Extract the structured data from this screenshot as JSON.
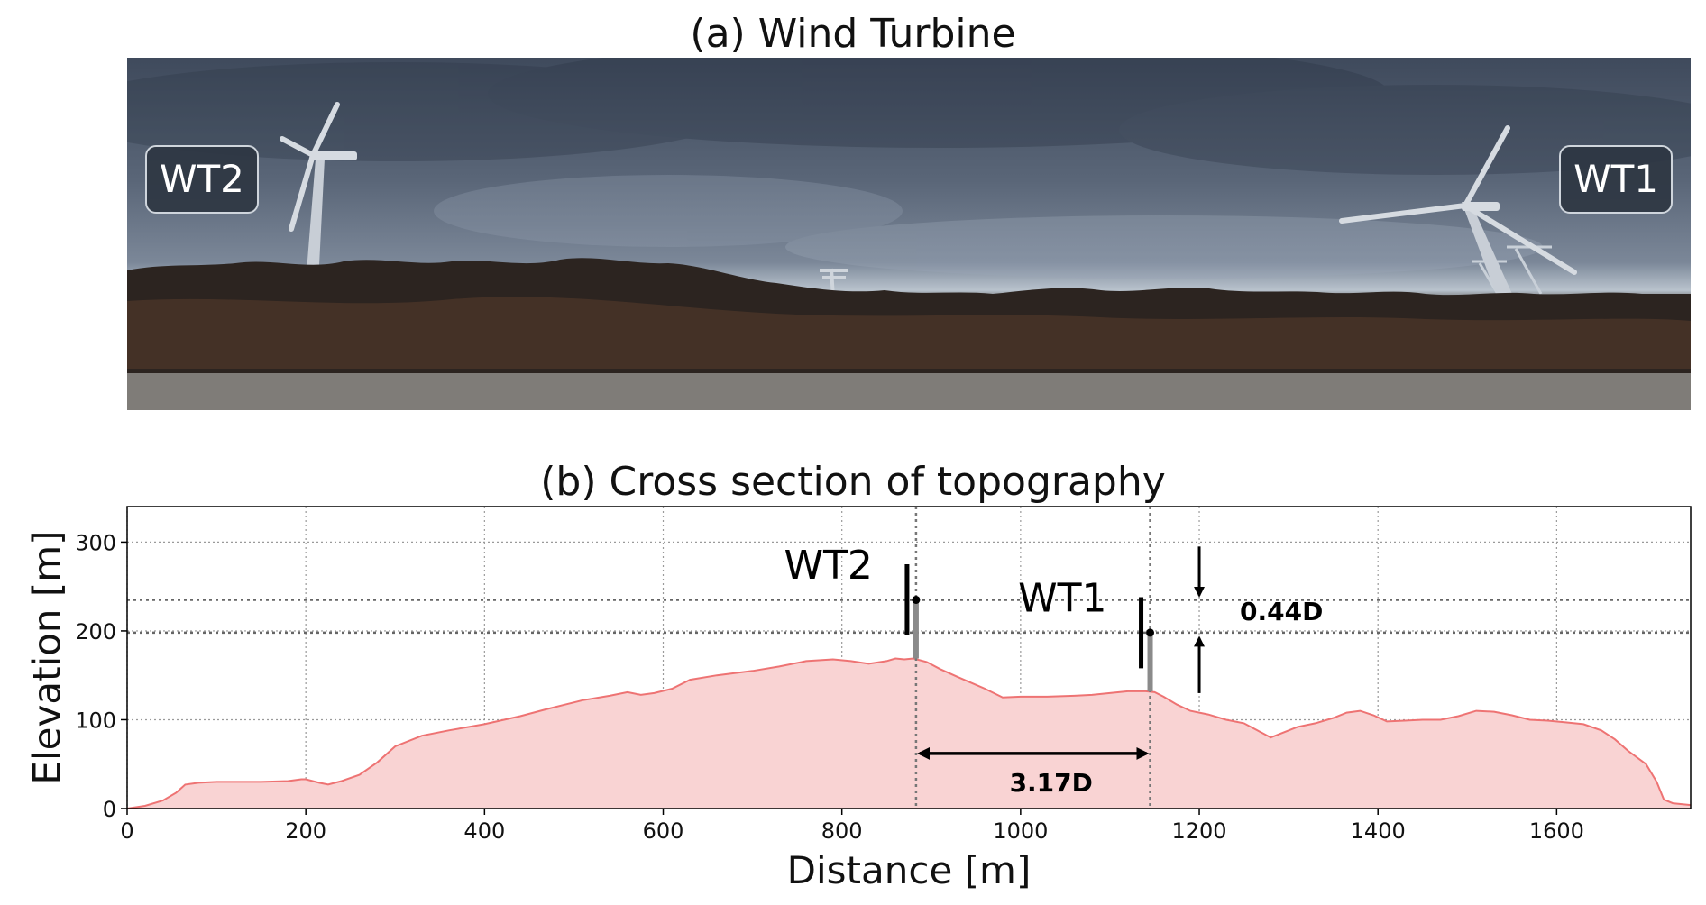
{
  "photo_panel": {
    "title": "(a) Wind Turbine",
    "labels": {
      "left": "WT2",
      "right": "WT1"
    },
    "icons": [
      "wind-turbine-icon",
      "wind-turbine-icon",
      "crane-icon",
      "utility-pole-icon"
    ]
  },
  "chart_data": {
    "type": "area",
    "title": "(b) Cross section of topography",
    "xlabel": "Distance [m]",
    "ylabel": "Elevation [m]",
    "xlim": [
      0,
      1750
    ],
    "ylim": [
      0,
      340
    ],
    "xticks": [
      0,
      200,
      400,
      600,
      800,
      1000,
      1200,
      1400,
      1600
    ],
    "yticks": [
      0,
      100,
      200,
      300
    ],
    "grid": true,
    "fill_color": "#f9d3d3",
    "line_color": "#ee7373",
    "series": [
      {
        "x": [
          0,
          20,
          40,
          55,
          65,
          80,
          100,
          150,
          180,
          195,
          200,
          215,
          225,
          240,
          260,
          280,
          300,
          330,
          360,
          400,
          440,
          470,
          490,
          510,
          540,
          560,
          575,
          590,
          610,
          630,
          660,
          700,
          730,
          760,
          790,
          810,
          830,
          850,
          860,
          870,
          880,
          895,
          910,
          930,
          960,
          980,
          1000,
          1030,
          1060,
          1080,
          1100,
          1120,
          1140,
          1150,
          1160,
          1175,
          1190,
          1210,
          1230,
          1250,
          1265,
          1280,
          1295,
          1310,
          1330,
          1350,
          1365,
          1380,
          1395,
          1410,
          1430,
          1450,
          1470,
          1490,
          1510,
          1530,
          1550,
          1570,
          1590,
          1610,
          1630,
          1650,
          1665,
          1680,
          1700,
          1712,
          1720,
          1730,
          1750
        ],
        "y": [
          0,
          3,
          9,
          18,
          27,
          29,
          30,
          30,
          31,
          33,
          33,
          29,
          27,
          31,
          38,
          52,
          70,
          82,
          88,
          95,
          104,
          112,
          117,
          122,
          127,
          131,
          128,
          130,
          135,
          145,
          150,
          155,
          160,
          166,
          168,
          166,
          163,
          166,
          169,
          168,
          169,
          165,
          157,
          148,
          135,
          125,
          126,
          126,
          127,
          128,
          130,
          132,
          132,
          131,
          126,
          117,
          110,
          106,
          100,
          96,
          88,
          80,
          86,
          92,
          96,
          102,
          108,
          110,
          105,
          98,
          99,
          100,
          100,
          104,
          110,
          109,
          105,
          100,
          99,
          97,
          95,
          88,
          78,
          65,
          50,
          30,
          10,
          6,
          4
        ]
      }
    ],
    "turbines": [
      {
        "name": "WT2",
        "x": 883,
        "base": 169,
        "hub": 235
      },
      {
        "name": "WT1",
        "x": 1145,
        "base": 132,
        "hub": 198
      }
    ],
    "annotations": {
      "height_difference": "0.44D",
      "separation": "3.17D"
    }
  }
}
